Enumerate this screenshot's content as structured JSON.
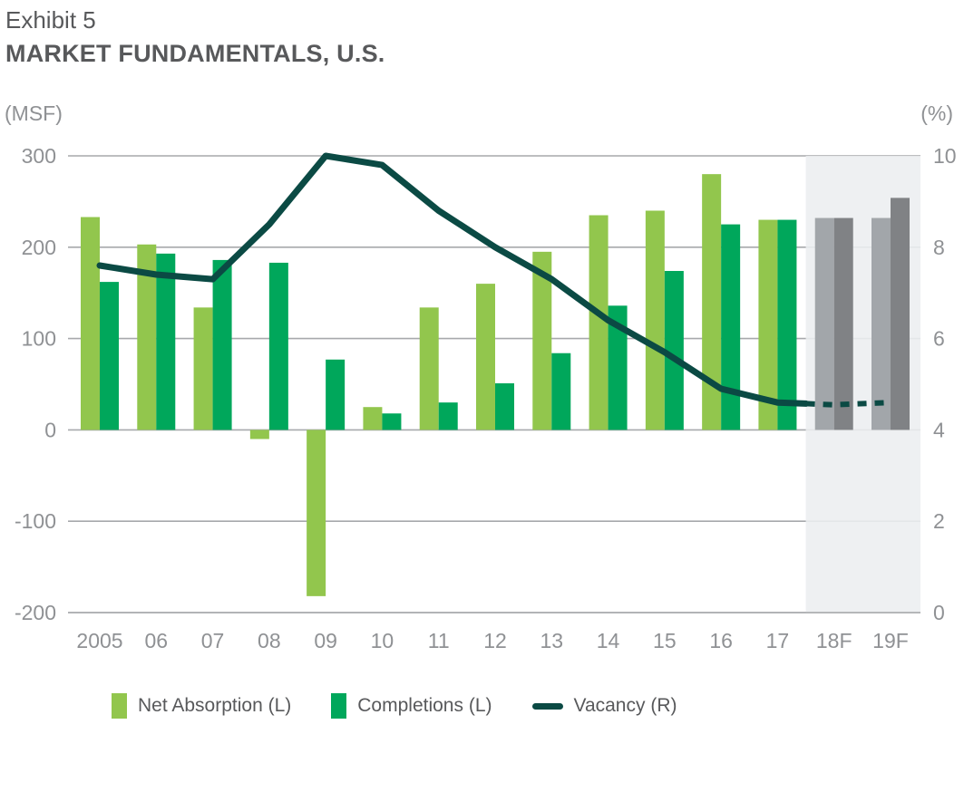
{
  "header": {
    "exhibit": "Exhibit 5",
    "title": "MARKET FUNDAMENTALS, U.S."
  },
  "colors": {
    "net_absorption": "#92c64d",
    "completions": "#00a75b",
    "vacancy": "#0b4a44",
    "forecast_net_absorption": "#a2a6aa",
    "forecast_completions": "#808285",
    "forecast_band": "#eceef0",
    "gridline": "#a7a9ac",
    "tick_text": "#8f9194",
    "title_text": "#58595b"
  },
  "chart_data": {
    "type": "combo_bar_line",
    "title": "MARKET FUNDAMENTALS, U.S.",
    "categories": [
      "2005",
      "06",
      "07",
      "08",
      "09",
      "10",
      "11",
      "12",
      "13",
      "14",
      "15",
      "16",
      "17",
      "18F",
      "19F"
    ],
    "series": [
      {
        "name": "Net Absorption (L)",
        "type": "bar",
        "axis": "left",
        "values": [
          233,
          203,
          134,
          -10,
          -182,
          25,
          134,
          160,
          195,
          235,
          240,
          280,
          230,
          232,
          232
        ]
      },
      {
        "name": "Completions (L)",
        "type": "bar",
        "axis": "left",
        "values": [
          162,
          193,
          186,
          183,
          77,
          18,
          30,
          51,
          84,
          136,
          174,
          225,
          230,
          232,
          254
        ]
      },
      {
        "name": "Vacancy (R)",
        "type": "line",
        "axis": "right",
        "values": [
          7.6,
          7.4,
          7.3,
          8.5,
          10,
          9.8,
          8.8,
          8,
          7.3,
          6.4,
          5.7,
          4.9,
          4.6,
          4.55,
          4.6
        ],
        "dashed_from_index": 12
      }
    ],
    "forecast_start_index": 13,
    "forecast_categories": [
      "18F",
      "19F"
    ],
    "left_axis": {
      "label": "(MSF)",
      "range": [
        -200,
        300
      ],
      "ticks": [
        300,
        200,
        100,
        0,
        -100,
        -200
      ]
    },
    "right_axis": {
      "label": "(%)",
      "range": [
        0,
        10
      ],
      "ticks": [
        10,
        8,
        6,
        4,
        2,
        0
      ]
    },
    "grid": true,
    "legend_position": "bottom"
  }
}
